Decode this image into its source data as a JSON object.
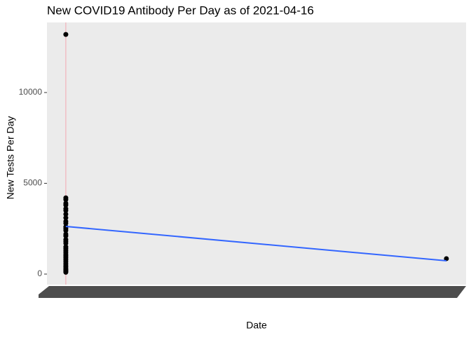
{
  "chart_data": {
    "type": "scatter",
    "title": "New COVID19 Antibody Per Day as of 2021-04-16",
    "x_label": "Date",
    "y_label": "New Tests Per Day",
    "xlim": [
      0,
      100
    ],
    "ylim": [
      -580,
      13860
    ],
    "yticks": [
      0,
      5000,
      10000
    ],
    "grid": false,
    "series": [
      {
        "color": "#000000",
        "x": [
          4.5,
          4.5,
          4.5,
          4.5,
          4.5,
          4.5,
          4.5,
          4.5,
          4.5,
          4.5,
          4.5,
          4.5,
          4.5,
          4.5,
          4.5,
          4.5,
          4.5,
          4.5,
          4.5,
          4.5,
          4.5,
          4.5,
          4.5,
          4.5,
          4.5,
          4.5,
          4.5,
          4.5,
          4.5,
          4.5,
          4.5,
          4.5,
          4.5,
          4.5,
          4.5,
          4.5,
          95.3
        ],
        "values": [
          13200,
          4200,
          4100,
          3900,
          3800,
          3600,
          3500,
          3300,
          3100,
          2900,
          2800,
          2600,
          2500,
          2400,
          2200,
          2100,
          1900,
          1800,
          1700,
          1500,
          1400,
          1300,
          1200,
          1100,
          1000,
          900,
          800,
          700,
          600,
          500,
          400,
          300,
          250,
          200,
          150,
          100,
          850
        ]
      }
    ],
    "trend": {
      "color": "#3366ff",
      "x": [
        4.5,
        95.3
      ],
      "values": [
        2625,
        733
      ]
    },
    "vline": {
      "color": "#f4a6b0",
      "x": 4.5
    }
  }
}
